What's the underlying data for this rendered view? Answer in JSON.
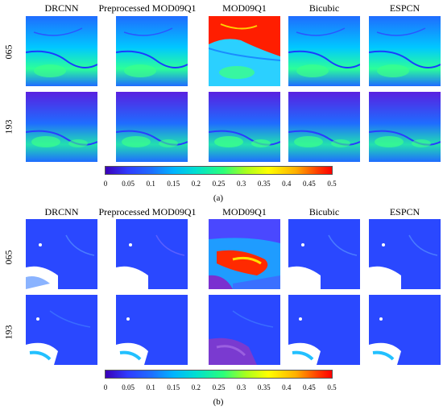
{
  "columns": [
    "DRCNN",
    "Preprocessed MOD09Q1",
    "MOD09Q1",
    "Bicubic",
    "ESPCN"
  ],
  "rows": [
    "065",
    "193"
  ],
  "colorbar_ticks": [
    "0",
    "0.05",
    "0.1",
    "0.15",
    "0.2",
    "0.25",
    "0.3",
    "0.35",
    "0.4",
    "0.45",
    "0.5"
  ],
  "panels": [
    {
      "label": "(a)"
    },
    {
      "label": "(b)"
    }
  ]
}
